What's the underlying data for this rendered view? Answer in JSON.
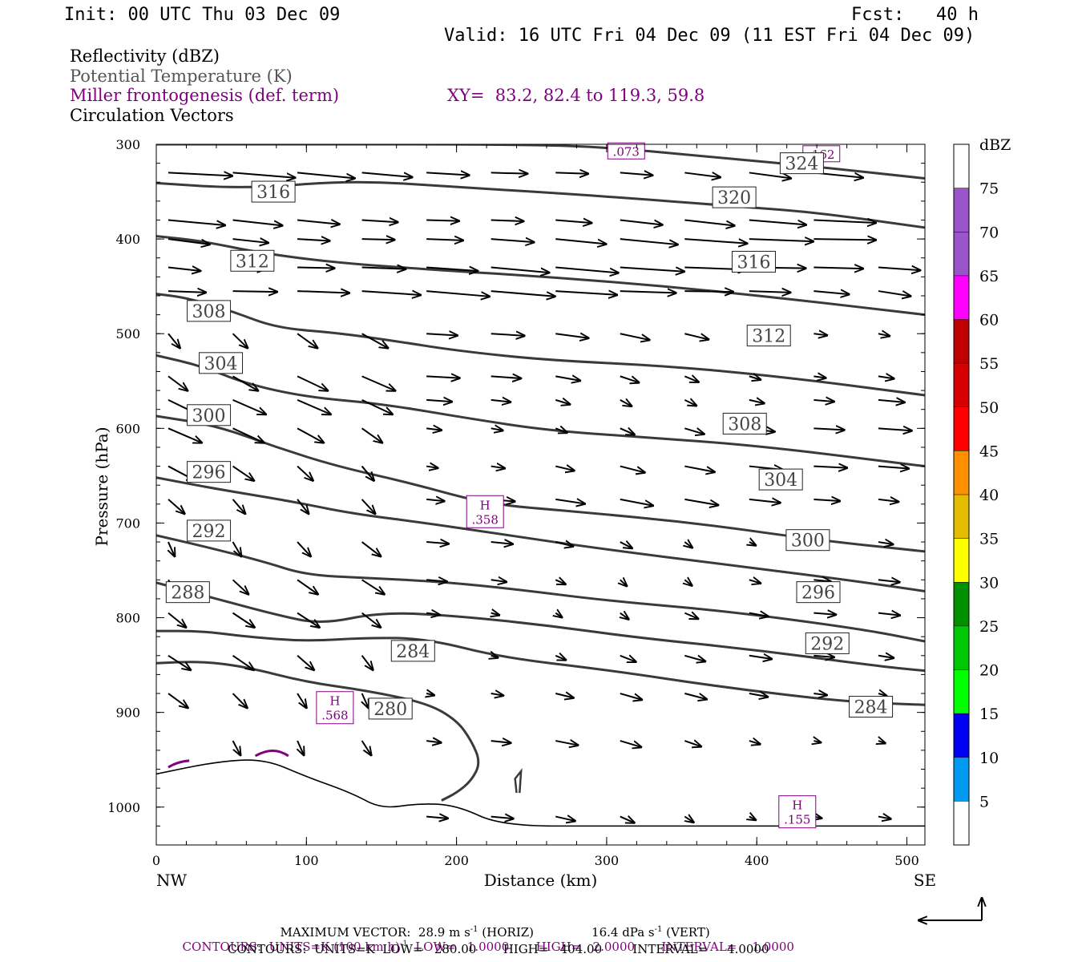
{
  "header": {
    "init": "Init: 00 UTC Thu 03 Dec 09",
    "fcst": "Fcst:   40 h",
    "valid": "Valid: 16 UTC Fri 04 Dec 09 (11 EST Fri 04 Dec 09)"
  },
  "legend": {
    "reflectivity": "Reflectivity (dBZ)",
    "theta": "Potential Temperature (K)",
    "miller": "Miller frontogenesis (def. term)",
    "xy": "XY=  83.2, 82.4 to 119.3, 59.8",
    "circulation": "Circulation Vectors"
  },
  "colors": {
    "purple": "#800080",
    "gray": "#555555",
    "contour": "#3a3a3a"
  },
  "chart_data": {
    "type": "cross-section",
    "xlabel": "Distance (km)",
    "ylabel": "Pressure (hPa)",
    "xlim": [
      0,
      512
    ],
    "ylim": [
      1040,
      300
    ],
    "xticks": [
      0,
      100,
      200,
      300,
      400,
      500
    ],
    "yticks": [
      300,
      400,
      500,
      600,
      700,
      800,
      900,
      1000
    ],
    "x_end_labels": [
      "NW",
      "SE"
    ],
    "theta_contours": [
      {
        "value": 324,
        "points": [
          [
            0,
            300
          ],
          [
            80,
            300
          ],
          [
            240,
            300
          ],
          [
            300,
            303
          ],
          [
            360,
            312
          ],
          [
            430,
            322
          ],
          [
            512,
            336
          ]
        ]
      },
      {
        "value": 320,
        "points": [
          [
            0,
            341
          ],
          [
            60,
            347
          ],
          [
            130,
            338
          ],
          [
            200,
            345
          ],
          [
            300,
            355
          ],
          [
            390,
            366
          ],
          [
            440,
            372
          ],
          [
            512,
            388
          ]
        ]
      },
      {
        "value": 316,
        "points": [
          [
            0,
            397
          ],
          [
            30,
            402
          ],
          [
            70,
            415
          ],
          [
            120,
            425
          ],
          [
            180,
            432
          ],
          [
            260,
            440
          ],
          [
            340,
            450
          ],
          [
            420,
            463
          ],
          [
            512,
            480
          ]
        ]
      },
      {
        "value": 312,
        "points": [
          [
            0,
            458
          ],
          [
            20,
            462
          ],
          [
            50,
            476
          ],
          [
            80,
            494
          ],
          [
            120,
            499
          ],
          [
            160,
            508
          ],
          [
            200,
            518
          ],
          [
            260,
            528
          ],
          [
            340,
            534
          ],
          [
            420,
            546
          ],
          [
            512,
            565
          ]
        ]
      },
      {
        "value": 308,
        "points": [
          [
            0,
            523
          ],
          [
            30,
            534
          ],
          [
            60,
            553
          ],
          [
            100,
            567
          ],
          [
            150,
            574
          ],
          [
            210,
            590
          ],
          [
            260,
            602
          ],
          [
            320,
            609
          ],
          [
            400,
            618
          ],
          [
            512,
            640
          ]
        ]
      },
      {
        "value": 304,
        "points": [
          [
            0,
            587
          ],
          [
            40,
            597
          ],
          [
            80,
            620
          ],
          [
            120,
            640
          ],
          [
            170,
            658
          ],
          [
            220,
            680
          ],
          [
            280,
            688
          ],
          [
            360,
            700
          ],
          [
            440,
            718
          ],
          [
            512,
            730
          ]
        ]
      },
      {
        "value": 300,
        "points": [
          [
            0,
            652
          ],
          [
            40,
            664
          ],
          [
            90,
            677
          ],
          [
            130,
            690
          ],
          [
            180,
            700
          ],
          [
            230,
            712
          ],
          [
            300,
            728
          ],
          [
            380,
            744
          ],
          [
            460,
            760
          ],
          [
            512,
            772
          ]
        ]
      },
      {
        "value": 296,
        "points": [
          [
            0,
            713
          ],
          [
            30,
            724
          ],
          [
            70,
            740
          ],
          [
            100,
            755
          ],
          [
            140,
            758
          ],
          [
            190,
            762
          ],
          [
            240,
            770
          ],
          [
            300,
            782
          ],
          [
            380,
            793
          ],
          [
            470,
            812
          ],
          [
            512,
            825
          ]
        ]
      },
      {
        "value": 292,
        "points": [
          [
            0,
            763
          ],
          [
            40,
            780
          ],
          [
            80,
            797
          ],
          [
            110,
            807
          ],
          [
            150,
            794
          ],
          [
            200,
            798
          ],
          [
            260,
            808
          ],
          [
            320,
            821
          ],
          [
            400,
            834
          ],
          [
            480,
            851
          ],
          [
            512,
            856
          ]
        ]
      },
      {
        "value": 288,
        "points": [
          [
            0,
            814
          ],
          [
            30,
            814
          ],
          [
            60,
            820
          ],
          [
            100,
            825
          ],
          [
            140,
            821
          ],
          [
            180,
            822
          ],
          [
            230,
            842
          ],
          [
            300,
            855
          ],
          [
            380,
            874
          ],
          [
            460,
            889
          ],
          [
            512,
            892
          ]
        ]
      },
      {
        "value": 284,
        "points": [
          [
            0,
            848
          ],
          [
            30,
            846
          ],
          [
            60,
            852
          ],
          [
            100,
            868
          ],
          [
            140,
            877
          ],
          [
            180,
            890
          ],
          [
            200,
            908
          ],
          [
            210,
            930
          ],
          [
            216,
            953
          ],
          [
            210,
            972
          ],
          [
            200,
            985
          ],
          [
            190,
            993
          ]
        ]
      },
      {
        "value": 280,
        "points": [
          [
            0,
            965
          ],
          [
            40,
            952
          ],
          [
            72,
            949
          ],
          [
            100,
            968
          ],
          [
            130,
            985
          ],
          [
            150,
            1002
          ],
          [
            175,
            996
          ],
          [
            200,
            998
          ],
          [
            230,
            1020
          ],
          [
            300,
            1020
          ],
          [
            512,
            1020
          ]
        ]
      }
    ],
    "theta_labels": [
      {
        "text": "324",
        "x": 430,
        "p": 320
      },
      {
        "text": "320",
        "x": 385,
        "p": 356
      },
      {
        "text": "316",
        "x": 78,
        "p": 350
      },
      {
        "text": "316",
        "x": 398,
        "p": 424
      },
      {
        "text": "312",
        "x": 64,
        "p": 423
      },
      {
        "text": "312",
        "x": 408,
        "p": 502
      },
      {
        "text": "308",
        "x": 35,
        "p": 476
      },
      {
        "text": "308",
        "x": 392,
        "p": 595
      },
      {
        "text": "304",
        "x": 43,
        "p": 531
      },
      {
        "text": "304",
        "x": 416,
        "p": 654
      },
      {
        "text": "300",
        "x": 35,
        "p": 586
      },
      {
        "text": "300",
        "x": 434,
        "p": 718
      },
      {
        "text": "296",
        "x": 35,
        "p": 646
      },
      {
        "text": "296",
        "x": 441,
        "p": 773
      },
      {
        "text": "292",
        "x": 35,
        "p": 708
      },
      {
        "text": "292",
        "x": 447,
        "p": 827
      },
      {
        "text": "288",
        "x": 21,
        "p": 773
      },
      {
        "text": "284",
        "x": 171,
        "p": 835
      },
      {
        "text": "284",
        "x": 476,
        "p": 894
      },
      {
        "text": "280",
        "x": 156,
        "p": 896
      }
    ],
    "frontogenesis_maxima": [
      {
        "label": "H",
        "value": ".358",
        "x": 219,
        "p": 688
      },
      {
        "label": "H",
        "value": ".568",
        "x": 119,
        "p": 895
      },
      {
        "label": "H",
        "value": ".155",
        "x": 427,
        "p": 1005
      },
      {
        "label": "",
        "value": ".073",
        "x": 313,
        "p": 307
      },
      {
        "label": "",
        "value": ".162",
        "x": 443,
        "p": 310
      }
    ],
    "colorbar": {
      "title": "dBZ",
      "levels": [
        5,
        10,
        15,
        20,
        25,
        30,
        35,
        40,
        45,
        50,
        55,
        60,
        65,
        70,
        75
      ],
      "colors": [
        "#00e8e8",
        "#0099f0",
        "#0000f0",
        "#00ff00",
        "#00c800",
        "#009000",
        "#ffff00",
        "#e6bc00",
        "#ff9000",
        "#ff0000",
        "#d60000",
        "#c00000",
        "#ff00ff",
        "#9955c9",
        "#ffffff"
      ]
    },
    "vector_note": "MAXIMUM VECTOR:  28.9 m s",
    "vector_note2": " (HORIZ)",
    "vector_note3": "16.4 dPa s",
    "vector_note4": " (VERT)",
    "contours_purple": "CONTOURS:  UNITS=K (100 km h)",
    "contours_purple2": "  LOW=   1.0000       HIGH=   2.0000       INTERVAL=    1.0000",
    "contours_black": "CONTOURS:  UNITS=K  LOW=   280.00       HIGH=   404.00        INTERVAL=     4.0000",
    "sup_minus1": "-1"
  }
}
